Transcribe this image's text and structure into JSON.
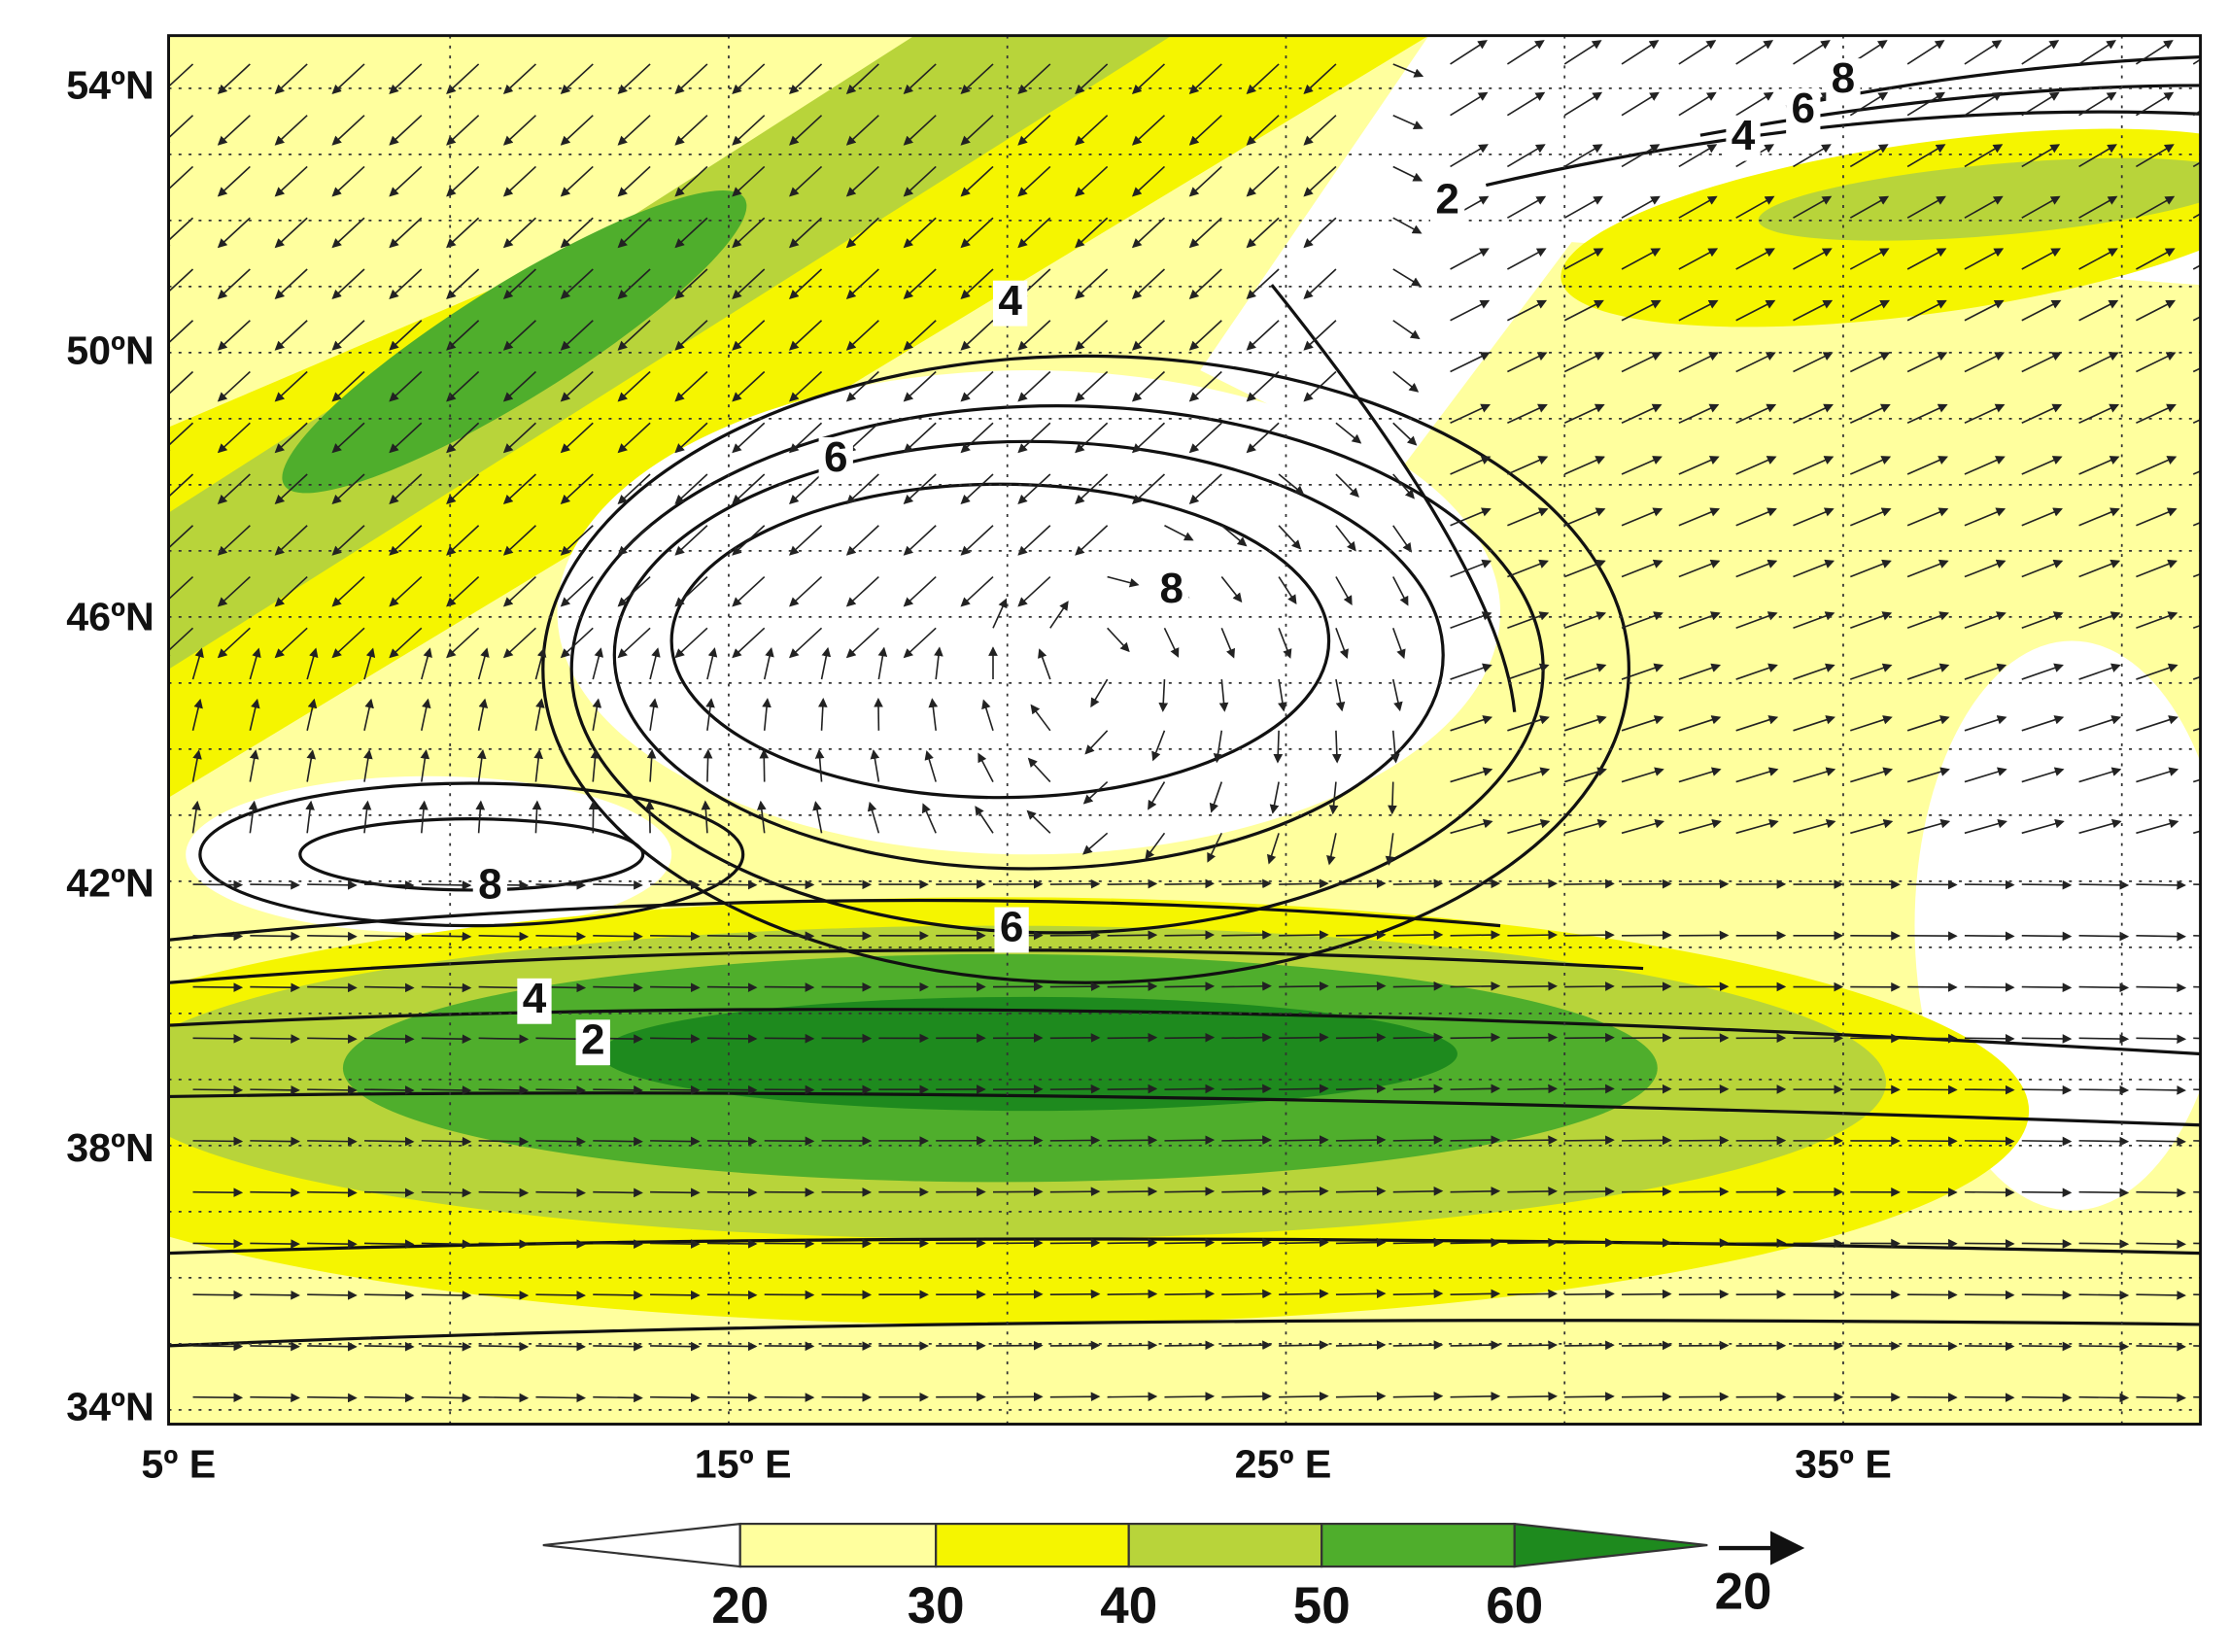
{
  "map": {
    "lat_labels": [
      "54ºN",
      "50ºN",
      "46ºN",
      "42ºN",
      "38ºN",
      "34ºN"
    ],
    "lon_labels": [
      "5º E",
      "15º E",
      "25º E",
      "35º E"
    ],
    "contour_labels": [
      "8",
      "6",
      "4",
      "2",
      "4",
      "6",
      "8",
      "8",
      "6",
      "4",
      "2"
    ],
    "colorbar": {
      "ticks": [
        "20",
        "30",
        "40",
        "50",
        "60"
      ]
    },
    "vector_key": "20"
  }
}
